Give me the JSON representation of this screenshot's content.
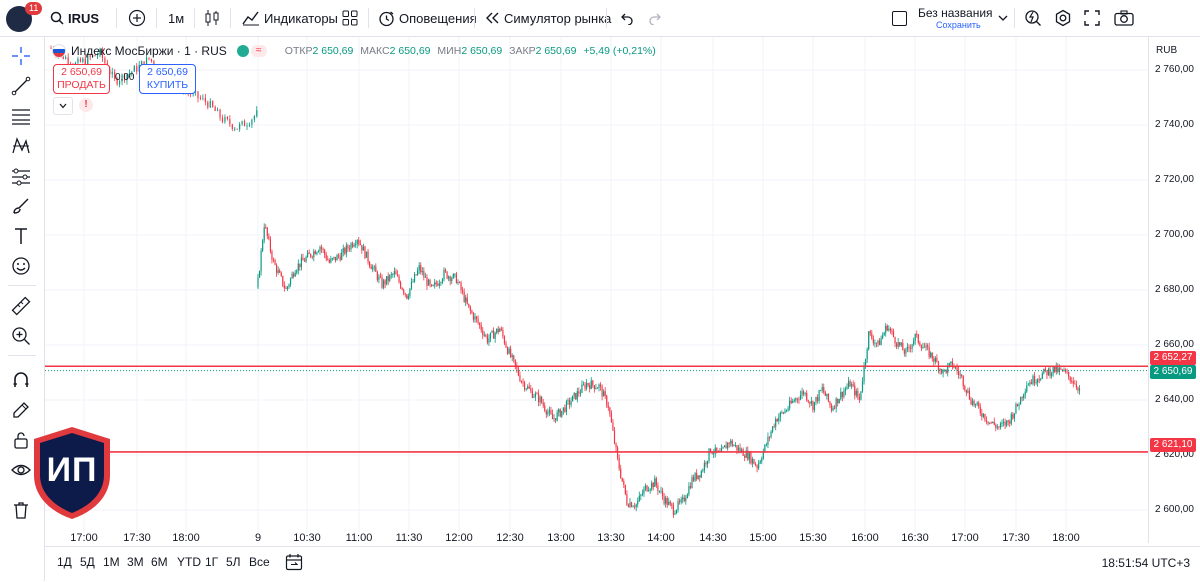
{
  "topbar": {
    "avatar_badge": "11",
    "search_text": "IRUS",
    "timeframe": "1м",
    "indicators": "Индикаторы",
    "alerts": "Оповещения",
    "replay": "Симулятор рынка",
    "layout_name": "Без названия",
    "layout_status": "Сохранить"
  },
  "legend": {
    "symbol": "Индекс МосБиржи · 1 · RUS",
    "open_label": "ОТКР",
    "open": "2 650,69",
    "high_label": "МАКС",
    "high": "2 650,69",
    "low_label": "МИН",
    "low": "2 650,69",
    "close_label": "ЗАКР",
    "close": "2 650,69",
    "change": "+5,49 (+0,21%)"
  },
  "trading": {
    "sell_price": "2 650,69",
    "sell_label": "ПРОДАТЬ",
    "spread": "0,00",
    "buy_price": "2 650,69",
    "buy_label": "КУПИТЬ"
  },
  "price_scale": {
    "currency": "RUB",
    "ticks": [
      "2 760,00",
      "2 740,00",
      "2 720,00",
      "2 700,00",
      "2 680,00",
      "2 660,00",
      "2 640,00",
      "2 620,00",
      "2 600,00"
    ],
    "labels": {
      "line_upper": "2 652,27",
      "last_price": "2 650,69",
      "line_lower": "2 621,10"
    }
  },
  "time_axis": [
    "17:00",
    "17:30",
    "18:00",
    "9",
    "10:30",
    "11:00",
    "11:30",
    "12:00",
    "12:30",
    "13:00",
    "13:30",
    "14:00",
    "14:30",
    "15:00",
    "15:30",
    "16:00",
    "16:30",
    "17:00",
    "17:30",
    "18:00"
  ],
  "bottombar": {
    "ranges": [
      "1Д",
      "5Д",
      "1М",
      "3М",
      "6М",
      "YTD",
      "1Г",
      "5Л",
      "Все"
    ],
    "clock": "18:51:54 UTC+3"
  },
  "watermark": "ИП",
  "colors": {
    "up": "#089981",
    "down": "#f23645",
    "hline": "#f23645",
    "accent": "#2962ff"
  },
  "chart_data": {
    "type": "candlestick",
    "interval": "1m",
    "ylim": [
      2592,
      2772
    ],
    "hlines": [
      2652.27,
      2621.1
    ],
    "last_price": 2650.69,
    "close_path": [
      [
        0,
        2768
      ],
      [
        10,
        2762
      ],
      [
        20,
        2766
      ],
      [
        26,
        2756
      ],
      [
        34,
        2760
      ],
      [
        40,
        2764
      ],
      [
        48,
        2758
      ],
      [
        56,
        2752
      ],
      [
        64,
        2748
      ],
      [
        70,
        2742
      ],
      [
        76,
        2739
      ],
      [
        80,
        2741
      ],
      [
        84,
        2744
      ],
      [
        86,
        2683
      ],
      [
        90,
        2704
      ],
      [
        96,
        2690
      ],
      [
        104,
        2680
      ],
      [
        110,
        2688
      ],
      [
        118,
        2692
      ],
      [
        126,
        2696
      ],
      [
        132,
        2690
      ],
      [
        140,
        2693
      ],
      [
        150,
        2699
      ],
      [
        158,
        2690
      ],
      [
        166,
        2682
      ],
      [
        174,
        2686
      ],
      [
        182,
        2678
      ],
      [
        190,
        2688
      ],
      [
        198,
        2680
      ],
      [
        206,
        2686
      ],
      [
        214,
        2684
      ],
      [
        222,
        2673
      ],
      [
        228,
        2668
      ],
      [
        234,
        2662
      ],
      [
        242,
        2666
      ],
      [
        248,
        2657
      ],
      [
        256,
        2647
      ],
      [
        262,
        2643
      ],
      [
        268,
        2640
      ],
      [
        276,
        2633
      ],
      [
        282,
        2636
      ],
      [
        290,
        2641
      ],
      [
        298,
        2646
      ],
      [
        306,
        2645
      ],
      [
        312,
        2638
      ],
      [
        318,
        2618
      ],
      [
        324,
        2603
      ],
      [
        330,
        2602
      ],
      [
        336,
        2608
      ],
      [
        342,
        2610
      ],
      [
        348,
        2604
      ],
      [
        354,
        2600
      ],
      [
        360,
        2603
      ],
      [
        366,
        2611
      ],
      [
        372,
        2614
      ],
      [
        378,
        2622
      ],
      [
        384,
        2620
      ],
      [
        390,
        2625
      ],
      [
        396,
        2622
      ],
      [
        402,
        2620
      ],
      [
        408,
        2616
      ],
      [
        414,
        2624
      ],
      [
        420,
        2633
      ],
      [
        426,
        2636
      ],
      [
        432,
        2640
      ],
      [
        438,
        2643
      ],
      [
        444,
        2638
      ],
      [
        450,
        2644
      ],
      [
        456,
        2637
      ],
      [
        462,
        2642
      ],
      [
        468,
        2646
      ],
      [
        474,
        2640
      ],
      [
        480,
        2664
      ],
      [
        486,
        2660
      ],
      [
        492,
        2667
      ],
      [
        498,
        2661
      ],
      [
        504,
        2657
      ],
      [
        510,
        2663
      ],
      [
        516,
        2659
      ],
      [
        522,
        2655
      ],
      [
        528,
        2650
      ],
      [
        534,
        2653
      ],
      [
        540,
        2648
      ],
      [
        546,
        2640
      ],
      [
        552,
        2636
      ],
      [
        558,
        2632
      ],
      [
        564,
        2630
      ],
      [
        570,
        2632
      ],
      [
        576,
        2638
      ],
      [
        582,
        2646
      ],
      [
        588,
        2648
      ],
      [
        594,
        2650
      ],
      [
        600,
        2651
      ],
      [
        606,
        2650
      ],
      [
        612,
        2647
      ],
      [
        616,
        2644
      ]
    ],
    "time_range": [
      "17:00",
      "18:51"
    ]
  }
}
